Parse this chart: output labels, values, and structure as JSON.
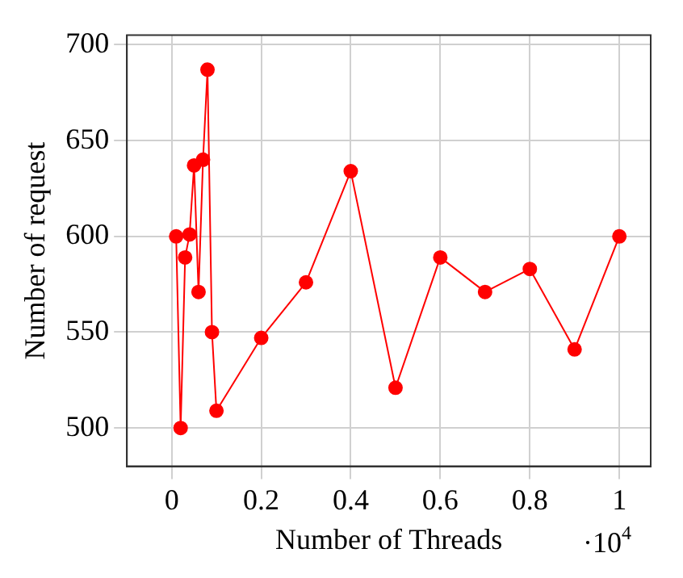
{
  "chart_data": {
    "type": "line",
    "xlabel": "Number of Threads",
    "ylabel": "Number of request",
    "annotations": [
      "·10$^{4}$"
    ],
    "x": [
      0.01,
      0.02,
      0.03,
      0.04,
      0.05,
      0.06,
      0.07,
      0.08,
      0.09,
      0.1,
      0.2,
      0.3,
      0.4,
      0.5,
      0.6,
      0.7,
      0.8,
      0.9,
      1
    ],
    "series": [
      {
        "color": "#ff0000",
        "values": [
          600,
          500,
          589,
          601,
          637,
          571,
          640,
          687,
          550,
          509,
          547,
          576,
          634,
          521,
          589,
          571,
          583,
          541,
          600
        ]
      }
    ],
    "xlim": [
      -0.1,
      1.07
    ],
    "ylim": [
      480,
      705
    ],
    "xticks": [
      0,
      0.2,
      0.4,
      0.6,
      0.8,
      1
    ],
    "yticks": [
      500,
      550,
      600,
      650,
      700
    ],
    "grid": true,
    "marker": "circle",
    "line_style": "solid"
  }
}
